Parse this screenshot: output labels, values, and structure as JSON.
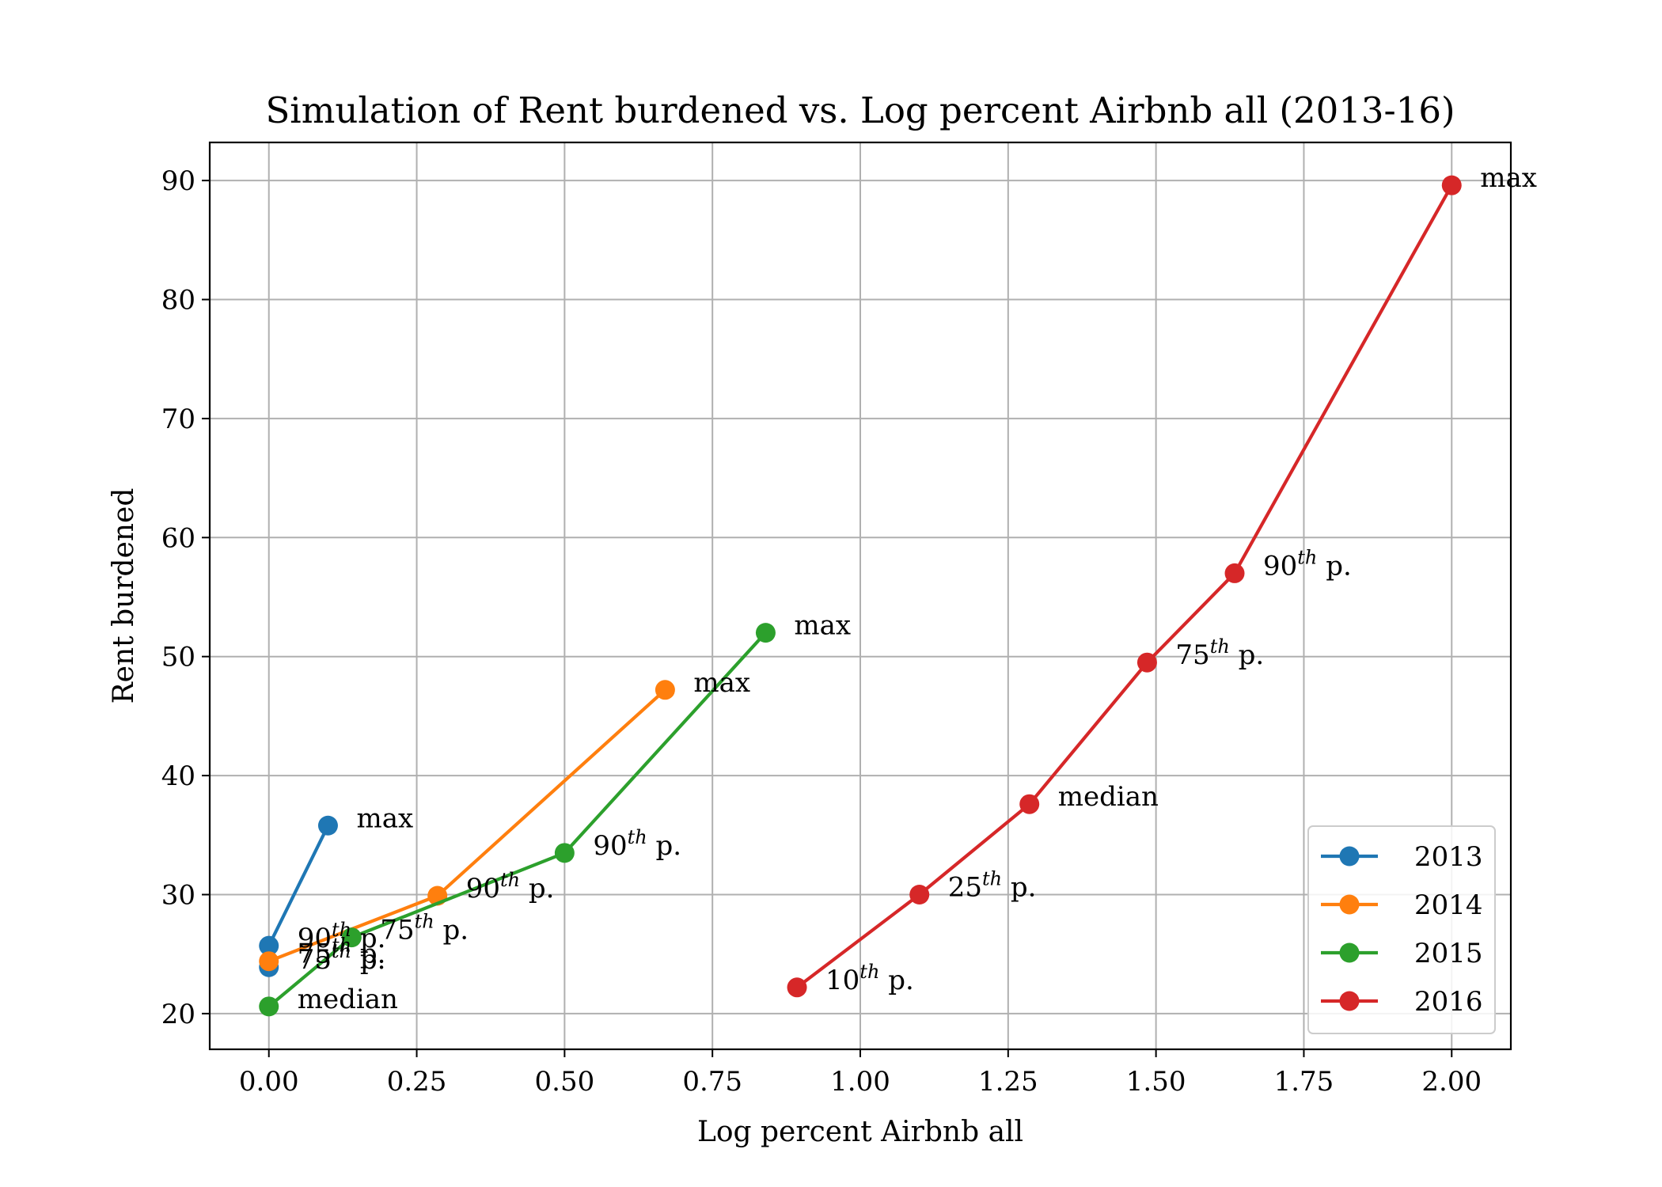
{
  "chart_data": {
    "type": "line",
    "title": "Simulation of Rent burdened vs. Log percent Airbnb all (2013-16)",
    "xlabel": "Log percent Airbnb all",
    "ylabel": "Rent burdened",
    "xlim": [
      -0.1,
      2.1
    ],
    "ylim": [
      17,
      93.2
    ],
    "xticks": [
      0.0,
      0.25,
      0.5,
      0.75,
      1.0,
      1.25,
      1.5,
      1.75,
      2.0
    ],
    "xtick_labels": [
      "0.00",
      "0.25",
      "0.50",
      "0.75",
      "1.00",
      "1.25",
      "1.50",
      "1.75",
      "2.00"
    ],
    "yticks": [
      20,
      30,
      40,
      50,
      60,
      70,
      80,
      90
    ],
    "ytick_labels": [
      "20",
      "30",
      "40",
      "50",
      "60",
      "70",
      "80",
      "90"
    ],
    "grid": true,
    "legend_position": "lower-right",
    "series": [
      {
        "name": "2013",
        "color": "#1f77b4",
        "points": [
          {
            "x": 0.0,
            "y": 23.9,
            "label": "75",
            "sup": "th",
            "suffix": " p."
          },
          {
            "x": 0.0,
            "y": 25.7,
            "label": "90",
            "sup": "th",
            "suffix": " p."
          },
          {
            "x": 0.1,
            "y": 35.8,
            "label": "max",
            "sup": "",
            "suffix": ""
          }
        ]
      },
      {
        "name": "2014",
        "color": "#ff7f0e",
        "points": [
          {
            "x": 0.0,
            "y": 24.4,
            "label": "75",
            "sup": "th",
            "suffix": " p."
          },
          {
            "x": 0.285,
            "y": 29.9,
            "label": "90",
            "sup": "th",
            "suffix": " p."
          },
          {
            "x": 0.67,
            "y": 47.2,
            "label": "max",
            "sup": "",
            "suffix": ""
          }
        ]
      },
      {
        "name": "2015",
        "color": "#2ca02c",
        "points": [
          {
            "x": 0.0,
            "y": 20.6,
            "label": "median",
            "sup": "",
            "suffix": ""
          },
          {
            "x": 0.14,
            "y": 26.4,
            "label": "75",
            "sup": "th",
            "suffix": " p."
          },
          {
            "x": 0.5,
            "y": 33.5,
            "label": "90",
            "sup": "th",
            "suffix": " p."
          },
          {
            "x": 0.84,
            "y": 52.0,
            "label": "max",
            "sup": "",
            "suffix": ""
          }
        ]
      },
      {
        "name": "2016",
        "color": "#d62728",
        "points": [
          {
            "x": 0.893,
            "y": 22.2,
            "label": "10",
            "sup": "th",
            "suffix": " p."
          },
          {
            "x": 1.1,
            "y": 30.0,
            "label": "25",
            "sup": "th",
            "suffix": " p."
          },
          {
            "x": 1.286,
            "y": 37.6,
            "label": "median",
            "sup": "",
            "suffix": ""
          },
          {
            "x": 1.485,
            "y": 49.5,
            "label": "75",
            "sup": "th",
            "suffix": " p."
          },
          {
            "x": 1.633,
            "y": 57.0,
            "label": "90",
            "sup": "th",
            "suffix": " p."
          },
          {
            "x": 2.0,
            "y": 89.6,
            "label": "max",
            "sup": "",
            "suffix": ""
          }
        ]
      }
    ]
  }
}
